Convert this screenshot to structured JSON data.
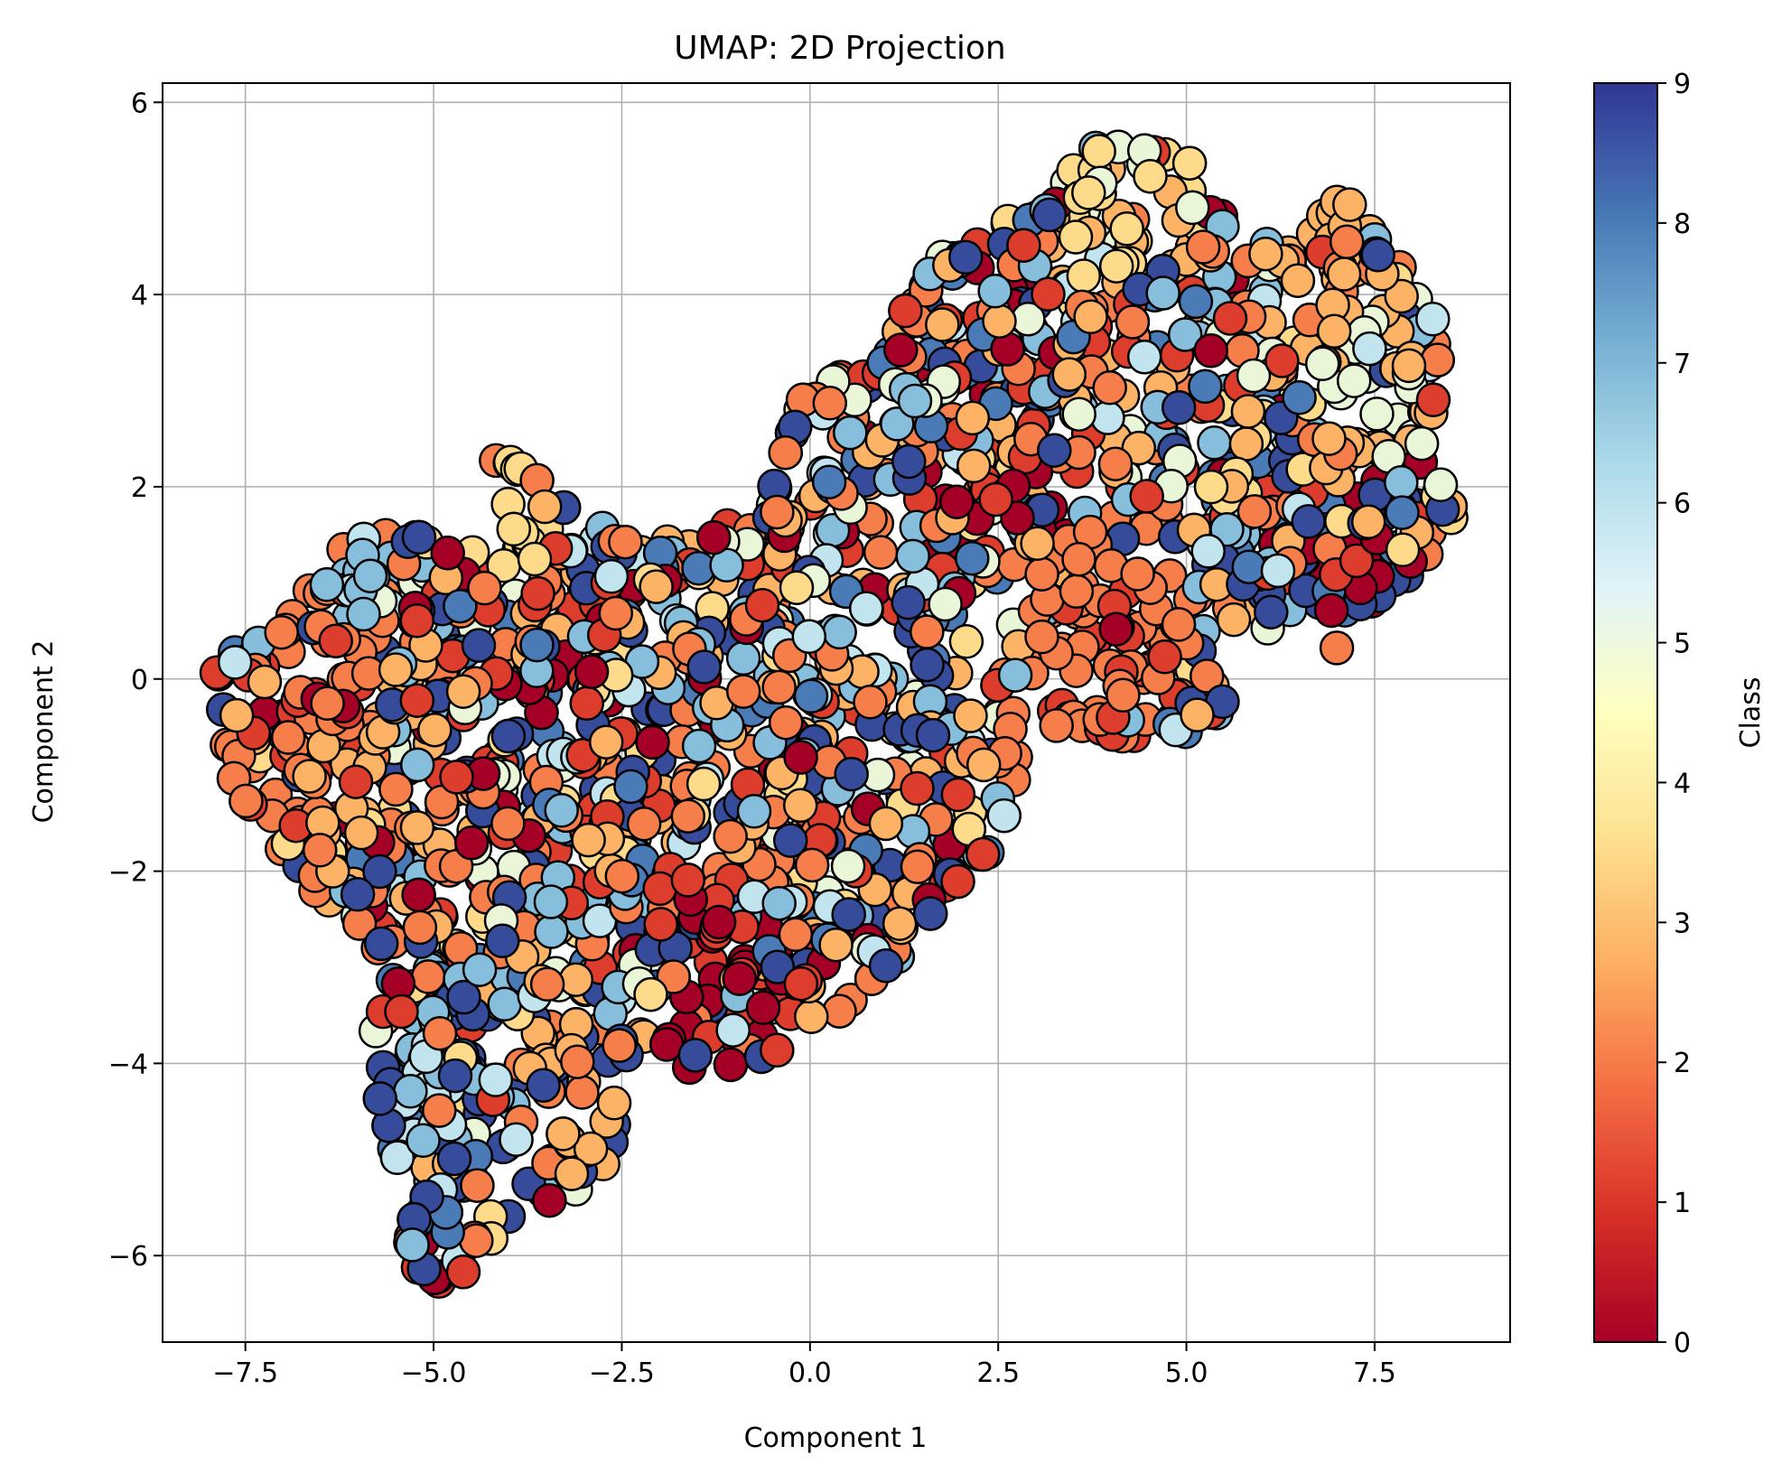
{
  "chart_data": {
    "type": "scatter",
    "title": "UMAP: 2D Projection",
    "xlabel": "Component 1",
    "ylabel": "Component 2",
    "xlim": [
      -8.6,
      9.3
    ],
    "ylim": [
      -6.9,
      6.2
    ],
    "grid": true,
    "x_ticks": [
      -7.5,
      -5.0,
      -2.5,
      0.0,
      2.5,
      5.0,
      7.5
    ],
    "x_tick_labels": [
      "−7.5",
      "−5.0",
      "−2.5",
      "0.0",
      "2.5",
      "5.0",
      "7.5"
    ],
    "y_ticks": [
      -6,
      -4,
      -2,
      0,
      2,
      4,
      6
    ],
    "y_tick_labels": [
      "−6",
      "−4",
      "−2",
      "0",
      "2",
      "4",
      "6"
    ],
    "colorbar": {
      "label": "Class",
      "min": 0,
      "max": 9,
      "ticks": [
        0,
        1,
        2,
        3,
        4,
        5,
        6,
        7,
        8,
        9
      ],
      "tick_labels": [
        "0",
        "1",
        "2",
        "3",
        "4",
        "5",
        "6",
        "7",
        "8",
        "9"
      ],
      "colormap": "RdYlBu",
      "colors": [
        "#a50026",
        "#d73027",
        "#f46d43",
        "#fdae61",
        "#fee090",
        "#ffffbf",
        "#e0f3f8",
        "#abd9e9",
        "#74add1",
        "#4575b4",
        "#313695"
      ]
    },
    "class_colors": [
      "#a50026",
      "#dd3d2d",
      "#f67e4b",
      "#fdb366",
      "#feda8b",
      "#eaf6d8",
      "#c2e4ef",
      "#87bedc",
      "#4a7bb7",
      "#364b9a"
    ],
    "series": [
      {
        "x": [
          -7.8,
          -7.5,
          -7.2,
          -7.4,
          -6.9,
          -6.6,
          -6.3,
          -6.8,
          -7.0,
          -6.2,
          -5.9,
          -5.5,
          -6.5,
          -6.0,
          -5.7,
          -7.6,
          -6.7,
          -6.4,
          -5.8,
          -5.4,
          -5.2,
          -6.1,
          -4.9,
          -4.6,
          -4.2,
          -3.7,
          -3.4,
          -3.0,
          -1.9,
          -1.0,
          -0.3,
          0.5,
          1.4,
          2.3,
          3.1,
          3.8,
          4.4,
          4.6,
          5.3,
          4.0,
          3.5
        ],
        "y": [
          -0.3,
          -0.7,
          -0.2,
          0.2,
          -0.6,
          -1.0,
          -0.4,
          0.1,
          -1.3,
          -1.2,
          -0.2,
          -0.6,
          -1.6,
          -0.9,
          -1.7,
          0.0,
          0.4,
          0.3,
          -1.1,
          -1.3,
          -0.8,
          0.6,
          -1.8,
          -1.4,
          0.5,
          -1.1,
          -0.1,
          0.0,
          -0.6,
          0.2,
          0.4,
          0.6,
          1.5,
          1.7,
          1.1,
          0.5,
          1.4,
          0.2,
          -0.3,
          0.8,
          3.3
        ],
        "class": 2
      }
    ],
    "point_count_note": ""
  }
}
